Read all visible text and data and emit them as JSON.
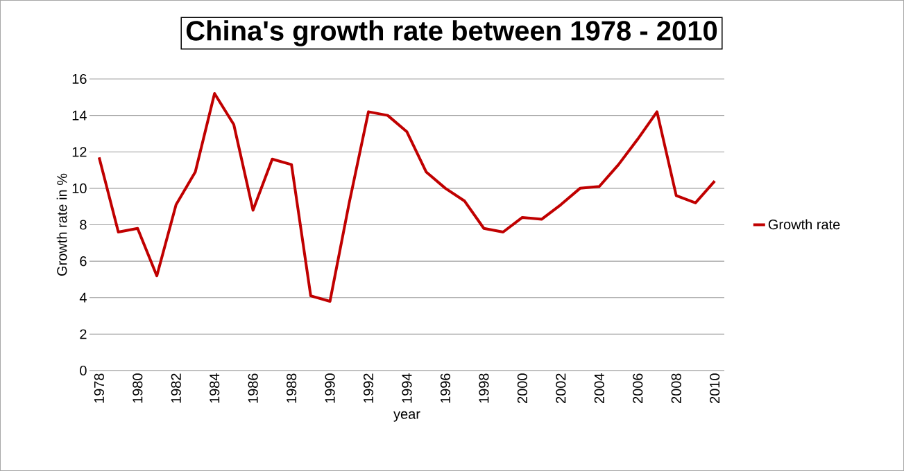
{
  "chart_data": {
    "type": "line",
    "title": "China's growth rate between 1978 - 2010",
    "xlabel": "year",
    "ylabel": "Growth rate in %",
    "x": [
      1978,
      1979,
      1980,
      1981,
      1982,
      1983,
      1984,
      1985,
      1986,
      1987,
      1988,
      1989,
      1990,
      1991,
      1992,
      1993,
      1994,
      1995,
      1996,
      1997,
      1998,
      1999,
      2000,
      2001,
      2002,
      2003,
      2004,
      2005,
      2006,
      2007,
      2008,
      2009,
      2010
    ],
    "series": [
      {
        "name": "Growth rate",
        "color": "#c00000",
        "values": [
          11.7,
          7.6,
          7.8,
          5.2,
          9.1,
          10.9,
          15.2,
          13.5,
          8.8,
          11.6,
          11.3,
          4.1,
          3.8,
          9.2,
          14.2,
          14.0,
          13.1,
          10.9,
          10.0,
          9.3,
          7.8,
          7.6,
          8.4,
          8.3,
          9.1,
          10.0,
          10.1,
          11.3,
          12.7,
          14.2,
          9.6,
          9.2,
          10.4
        ]
      }
    ],
    "xlim": [
      1977.5,
      2010.5
    ],
    "xticks": [
      1978,
      1980,
      1982,
      1984,
      1986,
      1988,
      1990,
      1992,
      1994,
      1996,
      1998,
      2000,
      2002,
      2004,
      2006,
      2008,
      2010
    ],
    "ylim": [
      0,
      16
    ],
    "yticks": [
      0,
      2,
      4,
      6,
      8,
      10,
      12,
      14,
      16
    ],
    "grid": "y",
    "legend": "right"
  }
}
